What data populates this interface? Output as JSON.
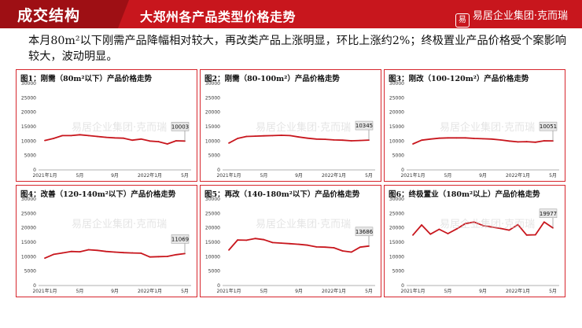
{
  "header": {
    "section_title": "成交结构",
    "slide_title": "大郑州各产品类型价格走势",
    "brand": "易居企业集团·克而瑞",
    "brand_mark": "易",
    "accent_color": "#c8161d"
  },
  "summary": "本月80m²以下刚需产品降幅相对较大，再改类产品上涨明显，环比上涨约2%；终极置业产品价格受个案影响较大，波动明显。",
  "watermark": "易居企业集团·克而瑞",
  "chart_data": [
    {
      "type": "line",
      "title": "图1：刚需（80m²以下）产品价格走势",
      "ylim": [
        0,
        30000
      ],
      "yticks": [
        0,
        5000,
        10000,
        15000,
        20000,
        25000,
        30000
      ],
      "x": [
        "2021年1月",
        "2021年2月",
        "2021年3月",
        "2021年4月",
        "2021年5月",
        "2021年6月",
        "2021年7月",
        "2021年8月",
        "2021年9月",
        "2021年10月",
        "2021年11月",
        "2021年12月",
        "2022年1月",
        "2022年2月",
        "2022年3月",
        "2022年4月",
        "2022年5月"
      ],
      "xtick_labels": [
        "2021年1月",
        "5月",
        "9月",
        "2022年1月",
        "5月"
      ],
      "xtick_index": [
        0,
        4,
        8,
        12,
        16
      ],
      "values": [
        10200,
        10900,
        11900,
        11900,
        12200,
        11900,
        11600,
        11300,
        11100,
        11000,
        10300,
        10700,
        10000,
        9800,
        9000,
        10100,
        10003
      ],
      "callout": "10003",
      "line_color": "#c8161d"
    },
    {
      "type": "line",
      "title": "图2：刚需（80-100m²）产品价格走势",
      "ylim": [
        0,
        30000
      ],
      "yticks": [
        0,
        5000,
        10000,
        15000,
        20000,
        25000,
        30000
      ],
      "x": [
        "2021年1月",
        "2021年2月",
        "2021年3月",
        "2021年4月",
        "2021年5月",
        "2021年6月",
        "2021年7月",
        "2021年8月",
        "2021年9月",
        "2021年10月",
        "2021年11月",
        "2021年12月",
        "2022年1月",
        "2022年2月",
        "2022年3月",
        "2022年4月",
        "2022年5月"
      ],
      "xtick_labels": [
        "2021年1月",
        "5月",
        "9月",
        "2022年1月",
        "5月"
      ],
      "xtick_index": [
        0,
        4,
        8,
        12,
        16
      ],
      "values": [
        9300,
        10900,
        11600,
        11700,
        11800,
        11900,
        12000,
        11900,
        11400,
        11000,
        10700,
        10600,
        10400,
        10300,
        10100,
        10200,
        10345
      ],
      "callout": "10345",
      "line_color": "#c8161d"
    },
    {
      "type": "line",
      "title": "图3：刚改（100-120m²）产品价格走势",
      "ylim": [
        0,
        30000
      ],
      "yticks": [
        0,
        5000,
        10000,
        15000,
        20000,
        25000,
        30000
      ],
      "x": [
        "2021年1月",
        "2021年2月",
        "2021年3月",
        "2021年4月",
        "2021年5月",
        "2021年6月",
        "2021年7月",
        "2021年8月",
        "2021年9月",
        "2021年10月",
        "2021年11月",
        "2021年12月",
        "2022年1月",
        "2022年2月",
        "2022年3月",
        "2022年4月",
        "2022年5月"
      ],
      "xtick_labels": [
        "2021年1月",
        "5月",
        "9月",
        "2022年1月",
        "5月"
      ],
      "xtick_index": [
        0,
        4,
        8,
        12,
        16
      ],
      "values": [
        9000,
        10300,
        10700,
        11000,
        11100,
        11100,
        11100,
        10900,
        10800,
        10700,
        10400,
        10000,
        9700,
        9800,
        9600,
        10100,
        10051
      ],
      "callout": "10051",
      "line_color": "#c8161d"
    },
    {
      "type": "line",
      "title": "图4：改善（120-140m²以下）产品价格走势",
      "ylim": [
        0,
        30000
      ],
      "yticks": [
        0,
        5000,
        10000,
        15000,
        20000,
        25000,
        30000
      ],
      "x": [
        "2021年1月",
        "2021年2月",
        "2021年3月",
        "2021年4月",
        "2021年5月",
        "2021年6月",
        "2021年7月",
        "2021年8月",
        "2021年9月",
        "2021年10月",
        "2021年11月",
        "2021年12月",
        "2022年1月",
        "2022年2月",
        "2022年3月",
        "2022年4月",
        "2022年5月"
      ],
      "xtick_labels": [
        "2021年1月",
        "5月",
        "9月",
        "2022年1月",
        "5月"
      ],
      "xtick_index": [
        0,
        4,
        8,
        12,
        16
      ],
      "values": [
        9500,
        10800,
        11300,
        11800,
        11700,
        12400,
        12200,
        11800,
        11600,
        11400,
        11300,
        11200,
        9900,
        10000,
        10100,
        10700,
        11069
      ],
      "callout": "11069",
      "line_color": "#c8161d"
    },
    {
      "type": "line",
      "title": "图5：再改（140-180m²以下）产品价格走势",
      "ylim": [
        0,
        30000
      ],
      "yticks": [
        0,
        5000,
        10000,
        15000,
        20000,
        25000,
        30000
      ],
      "x": [
        "2021年1月",
        "2021年2月",
        "2021年3月",
        "2021年4月",
        "2021年5月",
        "2021年6月",
        "2021年7月",
        "2021年8月",
        "2021年9月",
        "2021年10月",
        "2021年11月",
        "2021年12月",
        "2022年1月",
        "2022年2月",
        "2022年3月",
        "2022年4月",
        "2022年5月"
      ],
      "xtick_labels": [
        "2021年1月",
        "5月",
        "9月",
        "2022年1月",
        "5月"
      ],
      "xtick_index": [
        0,
        4,
        8,
        12,
        16
      ],
      "values": [
        12300,
        15800,
        15700,
        16300,
        15900,
        14900,
        14700,
        14500,
        14300,
        14000,
        13400,
        13300,
        13100,
        12000,
        11600,
        13300,
        13686
      ],
      "callout": "13686",
      "line_color": "#c8161d"
    },
    {
      "type": "line",
      "title": "图6：终极置业（180m²以上）产品价格走势",
      "ylim": [
        0,
        30000
      ],
      "yticks": [
        0,
        5000,
        10000,
        15000,
        20000,
        25000,
        30000
      ],
      "x": [
        "2021年1月",
        "2021年2月",
        "2021年3月",
        "2021年4月",
        "2021年5月",
        "2021年6月",
        "2021年7月",
        "2021年8月",
        "2021年9月",
        "2021年10月",
        "2021年11月",
        "2021年12月",
        "2022年1月",
        "2022年2月",
        "2022年3月",
        "2022年4月",
        "2022年5月"
      ],
      "xtick_labels": [
        "2021年1月",
        "5月",
        "9月",
        "2022年1月",
        "5月"
      ],
      "xtick_index": [
        0,
        4,
        8,
        12,
        16
      ],
      "values": [
        17500,
        21000,
        17800,
        19500,
        18000,
        19600,
        21500,
        22000,
        20800,
        20300,
        19800,
        19200,
        21100,
        17500,
        17600,
        22000,
        19977
      ],
      "callout": "19977",
      "line_color": "#c8161d"
    }
  ]
}
